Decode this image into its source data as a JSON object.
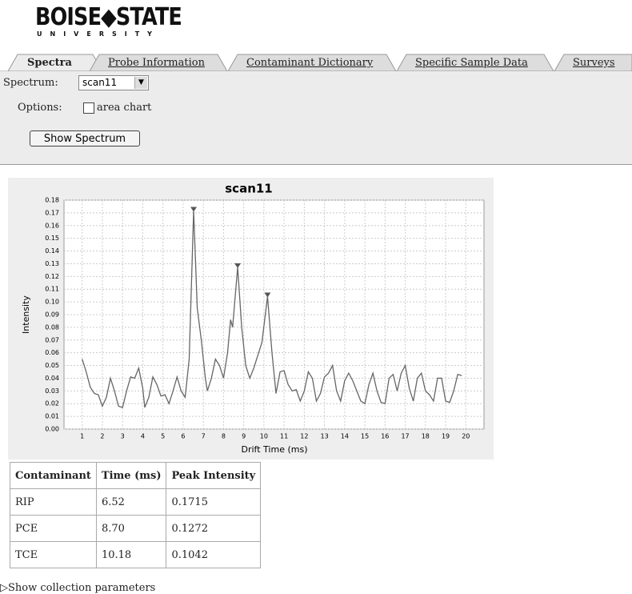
{
  "header": {
    "logo_main": "BOISE◆STATE",
    "logo_sub": "UNIVERSITY"
  },
  "tabs": [
    "Spectra",
    "Probe Information",
    "Contaminant Dictionary",
    "Specific Sample Data",
    "Surveys"
  ],
  "form": {
    "spectrum_label": "Spectrum:",
    "spectrum_value": "scan11",
    "options_label": "Options:",
    "area_chart_label": "area chart",
    "button": "Show Spectrum"
  },
  "chart_data": {
    "type": "line",
    "title": "scan11",
    "x_label": "Drift Time (ms)",
    "y_label": "Intensity",
    "color": "#666666",
    "grid": true,
    "xlim": [
      0.1,
      20.9
    ],
    "xticks": [
      1,
      2,
      3,
      4,
      5,
      6,
      7,
      8,
      9,
      10,
      11,
      12,
      13,
      14,
      15,
      16,
      17,
      18,
      19,
      20
    ],
    "ylim": [
      0,
      0.18
    ],
    "yticks": [
      {
        "value": 0,
        "label": "0.00"
      },
      0.01,
      0.02,
      0.03,
      0.04,
      0.05,
      0.06,
      0.07,
      0.08,
      0.09,
      {
        "value": 0.1,
        "label": "0.10"
      },
      0.11,
      0.12,
      0.13,
      0.14,
      0.15,
      0.16,
      0.17,
      0.18
    ],
    "x": [
      1.0,
      1.2,
      1.4,
      1.6,
      1.8,
      2.0,
      2.2,
      2.4,
      2.6,
      2.8,
      3.0,
      3.2,
      3.4,
      3.6,
      3.8,
      4.0,
      4.1,
      4.3,
      4.5,
      4.7,
      4.9,
      5.1,
      5.3,
      5.5,
      5.7,
      5.9,
      6.1,
      6.3,
      6.52,
      6.7,
      6.9,
      7.1,
      7.2,
      7.4,
      7.6,
      7.8,
      8.0,
      8.2,
      8.35,
      8.45,
      8.7,
      8.9,
      9.1,
      9.3,
      9.5,
      9.7,
      9.9,
      10.18,
      10.4,
      10.6,
      10.8,
      11.0,
      11.2,
      11.4,
      11.6,
      11.8,
      12.0,
      12.2,
      12.4,
      12.6,
      12.8,
      13.0,
      13.2,
      13.4,
      13.6,
      13.8,
      14.0,
      14.2,
      14.4,
      14.6,
      14.8,
      15.0,
      15.2,
      15.4,
      15.6,
      15.8,
      16.0,
      16.2,
      16.4,
      16.6,
      16.8,
      17.0,
      17.2,
      17.4,
      17.6,
      17.8,
      18.0,
      18.2,
      18.4,
      18.6,
      18.8,
      19.0,
      19.2,
      19.4,
      19.6,
      19.8
    ],
    "values": [
      0.055,
      0.045,
      0.033,
      0.028,
      0.027,
      0.018,
      0.025,
      0.04,
      0.03,
      0.018,
      0.017,
      0.03,
      0.041,
      0.04,
      0.048,
      0.032,
      0.017,
      0.025,
      0.041,
      0.035,
      0.026,
      0.027,
      0.02,
      0.03,
      0.041,
      0.03,
      0.025,
      0.055,
      0.1715,
      0.095,
      0.07,
      0.04,
      0.03,
      0.04,
      0.055,
      0.05,
      0.04,
      0.06,
      0.086,
      0.08,
      0.1272,
      0.08,
      0.05,
      0.04,
      0.048,
      0.058,
      0.068,
      0.1042,
      0.06,
      0.028,
      0.045,
      0.046,
      0.035,
      0.03,
      0.031,
      0.022,
      0.03,
      0.045,
      0.04,
      0.022,
      0.028,
      0.041,
      0.044,
      0.05,
      0.03,
      0.022,
      0.038,
      0.044,
      0.038,
      0.03,
      0.022,
      0.02,
      0.035,
      0.044,
      0.03,
      0.021,
      0.02,
      0.04,
      0.043,
      0.03,
      0.044,
      0.05,
      0.032,
      0.022,
      0.04,
      0.044,
      0.03,
      0.027,
      0.022,
      0.04,
      0.04,
      0.022,
      0.021,
      0.03,
      0.043,
      0.042
    ]
  },
  "table": {
    "columns": [
      "Contaminant",
      "Time (ms)",
      "Peak Intensity"
    ],
    "rows": [
      [
        "RIP",
        "6.52",
        "0.1715"
      ],
      [
        "PCE",
        "8.70",
        "0.1272"
      ],
      [
        "TCE",
        "10.18",
        "0.1042"
      ]
    ]
  },
  "footer": {
    "link": "▷Show collection parameters"
  }
}
